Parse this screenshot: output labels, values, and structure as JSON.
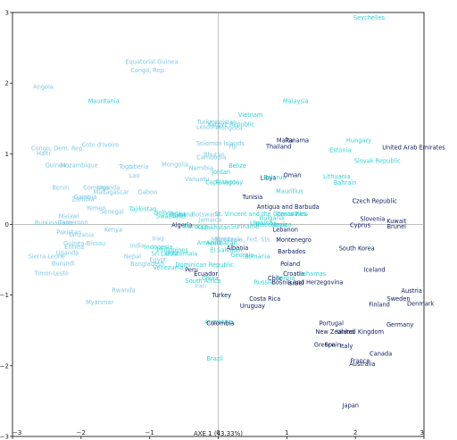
{
  "chart_data": {
    "type": "scatter",
    "xlabel": "AXE 1 (43.33%)",
    "ylabel": "",
    "xlim": [
      -3,
      3
    ],
    "ylim": [
      -3,
      3
    ],
    "xticks": [
      -3,
      -2,
      -1,
      0,
      1,
      2,
      3
    ],
    "yticks": [
      -3,
      -2,
      -1,
      0,
      1,
      2,
      3
    ],
    "colors": {
      "light": "#7ec8e3",
      "medium": "#2ed3d3",
      "dark": "#0b1a5c"
    },
    "points": [
      {
        "label": "Seychelles",
        "x": 2.2,
        "y": 2.93,
        "c": "medium"
      },
      {
        "label": "Equatorial Guinea",
        "x": -0.97,
        "y": 2.3,
        "c": "light"
      },
      {
        "label": "Congo, Rep.",
        "x": -1.02,
        "y": 2.18,
        "c": "light"
      },
      {
        "label": "Angola",
        "x": -2.55,
        "y": 1.95,
        "c": "light"
      },
      {
        "label": "Mauritania",
        "x": -1.67,
        "y": 1.75,
        "c": "medium"
      },
      {
        "label": "Malaysia",
        "x": 1.13,
        "y": 1.75,
        "c": "medium"
      },
      {
        "label": "Vietnam",
        "x": 0.47,
        "y": 1.55,
        "c": "medium"
      },
      {
        "label": "Turkmenistan",
        "x": -0.02,
        "y": 1.45,
        "c": "light"
      },
      {
        "label": "Kyrgyz Republic",
        "x": 0.19,
        "y": 1.42,
        "c": "medium"
      },
      {
        "label": "Lesotho",
        "x": -0.15,
        "y": 1.38,
        "c": "light"
      },
      {
        "label": "Mongolia",
        "x": 0.16,
        "y": 1.37,
        "c": "light"
      },
      {
        "label": "Cote d'Ivoire",
        "x": -1.72,
        "y": 1.13,
        "c": "light"
      },
      {
        "label": "Solomon Islands",
        "x": 0.03,
        "y": 1.15,
        "c": "light"
      },
      {
        "label": "Fiji",
        "x": 0.21,
        "y": 1.1,
        "c": "light"
      },
      {
        "label": "Malta",
        "x": 0.97,
        "y": 1.19,
        "c": "dark"
      },
      {
        "label": "Panama",
        "x": 1.15,
        "y": 1.19,
        "c": "dark"
      },
      {
        "label": "Hungary",
        "x": 2.05,
        "y": 1.19,
        "c": "medium"
      },
      {
        "label": "Thailand",
        "x": 0.88,
        "y": 1.1,
        "c": "dark"
      },
      {
        "label": "Estonia",
        "x": 1.78,
        "y": 1.05,
        "c": "medium"
      },
      {
        "label": "United Arab Emirates",
        "x": 2.85,
        "y": 1.09,
        "c": "dark"
      },
      {
        "label": "Congo, Dem. Rep.",
        "x": -2.34,
        "y": 1.08,
        "c": "light"
      },
      {
        "label": "Haiti",
        "x": -2.55,
        "y": 1.01,
        "c": "light"
      },
      {
        "label": "Bhutan",
        "x": -0.06,
        "y": 0.99,
        "c": "light"
      },
      {
        "label": "Cambodia",
        "x": -0.1,
        "y": 0.95,
        "c": "light"
      },
      {
        "label": "Guinea",
        "x": -2.37,
        "y": 0.84,
        "c": "light"
      },
      {
        "label": "Mozambique",
        "x": -2.03,
        "y": 0.84,
        "c": "light"
      },
      {
        "label": "Togo",
        "x": -1.35,
        "y": 0.82,
        "c": "light"
      },
      {
        "label": "Liberia",
        "x": -1.16,
        "y": 0.82,
        "c": "light"
      },
      {
        "label": "Mongolia",
        "x": -0.63,
        "y": 0.85,
        "c": "light"
      },
      {
        "label": "Namibia",
        "x": -0.25,
        "y": 0.8,
        "c": "light"
      },
      {
        "label": "Belize",
        "x": 0.28,
        "y": 0.83,
        "c": "medium"
      },
      {
        "label": "Slovak Republic",
        "x": 2.32,
        "y": 0.9,
        "c": "medium"
      },
      {
        "label": "Lao",
        "x": -1.22,
        "y": 0.69,
        "c": "light"
      },
      {
        "label": "Jordan",
        "x": 0.04,
        "y": 0.74,
        "c": "medium"
      },
      {
        "label": "Libya",
        "x": 0.73,
        "y": 0.66,
        "c": "dark"
      },
      {
        "label": "Belarus",
        "x": 0.82,
        "y": 0.67,
        "c": "medium"
      },
      {
        "label": "Oman",
        "x": 1.08,
        "y": 0.7,
        "c": "dark"
      },
      {
        "label": "Lithuania",
        "x": 1.73,
        "y": 0.68,
        "c": "medium"
      },
      {
        "label": "Vanuatu",
        "x": -0.31,
        "y": 0.64,
        "c": "light"
      },
      {
        "label": "Cape Verde",
        "x": 0.06,
        "y": 0.6,
        "c": "medium"
      },
      {
        "label": "Paraguay",
        "x": 0.16,
        "y": 0.6,
        "c": "medium"
      },
      {
        "label": "Bahrain",
        "x": 1.85,
        "y": 0.59,
        "c": "medium"
      },
      {
        "label": "Benin",
        "x": -2.3,
        "y": 0.52,
        "c": "light"
      },
      {
        "label": "Comoros",
        "x": -1.78,
        "y": 0.52,
        "c": "light"
      },
      {
        "label": "Uganda",
        "x": -1.6,
        "y": 0.52,
        "c": "light"
      },
      {
        "label": "Madagascar",
        "x": -1.56,
        "y": 0.46,
        "c": "light"
      },
      {
        "label": "Gabon",
        "x": -1.03,
        "y": 0.46,
        "c": "light"
      },
      {
        "label": "Mauritius",
        "x": 1.04,
        "y": 0.47,
        "c": "medium"
      },
      {
        "label": "Gambia",
        "x": -1.94,
        "y": 0.39,
        "c": "light"
      },
      {
        "label": "Zambia",
        "x": -1.97,
        "y": 0.36,
        "c": "light"
      },
      {
        "label": "Tunisia",
        "x": 0.5,
        "y": 0.39,
        "c": "dark"
      },
      {
        "label": "Czech Republic",
        "x": 2.28,
        "y": 0.33,
        "c": "dark"
      },
      {
        "label": "Yemen",
        "x": -1.78,
        "y": 0.23,
        "c": "light"
      },
      {
        "label": "Tajikistan",
        "x": -1.1,
        "y": 0.22,
        "c": "medium"
      },
      {
        "label": "Senegal",
        "x": -1.55,
        "y": 0.18,
        "c": "light"
      },
      {
        "label": "Antigua and Barbuda",
        "x": 1.02,
        "y": 0.25,
        "c": "dark"
      },
      {
        "label": "Bolivia",
        "x": -0.79,
        "y": 0.17,
        "c": "medium"
      },
      {
        "label": "Egypt",
        "x": -0.6,
        "y": 0.14,
        "c": "medium"
      },
      {
        "label": "Ghana",
        "x": -0.5,
        "y": 0.14,
        "c": "medium"
      },
      {
        "label": "Botswana",
        "x": -0.18,
        "y": 0.14,
        "c": "light"
      },
      {
        "label": "St. Vincent and the Grenadines",
        "x": 0.62,
        "y": 0.15,
        "c": "medium"
      },
      {
        "label": "Malawi",
        "x": -2.18,
        "y": 0.12,
        "c": "light"
      },
      {
        "label": "Swaziland",
        "x": -0.69,
        "y": 0.12,
        "c": "medium"
      },
      {
        "label": "Jamaica",
        "x": -0.12,
        "y": 0.07,
        "c": "light"
      },
      {
        "label": "Bulgaria",
        "x": 0.78,
        "y": 0.09,
        "c": "medium"
      },
      {
        "label": "Costa Rica",
        "x": 1.08,
        "y": 0.15,
        "c": "medium"
      },
      {
        "label": "Slovenia",
        "x": 2.25,
        "y": 0.08,
        "c": "dark"
      },
      {
        "label": "Kuwait",
        "x": 2.6,
        "y": 0.05,
        "c": "dark"
      },
      {
        "label": "Burkina Faso",
        "x": -2.4,
        "y": 0.02,
        "c": "light"
      },
      {
        "label": "Cameroon",
        "x": -2.12,
        "y": 0.03,
        "c": "light"
      },
      {
        "label": "Algeria",
        "x": -0.53,
        "y": -0.01,
        "c": "dark"
      },
      {
        "label": "Morocco",
        "x": -0.33,
        "y": -0.03,
        "c": "medium"
      },
      {
        "label": "Kazakhstan",
        "x": -0.07,
        "y": -0.04,
        "c": "medium"
      },
      {
        "label": "Suriname",
        "x": 0.39,
        "y": -0.03,
        "c": "medium"
      },
      {
        "label": "Ukraine",
        "x": 0.63,
        "y": 0.02,
        "c": "medium"
      },
      {
        "label": "Macedonia",
        "x": 0.78,
        "y": 0.0,
        "c": "medium"
      },
      {
        "label": "Mexico",
        "x": 0.92,
        "y": 0.0,
        "c": "medium"
      },
      {
        "label": "Cyprus",
        "x": 2.07,
        "y": -0.01,
        "c": "dark"
      },
      {
        "label": "Brunei",
        "x": 2.6,
        "y": -0.03,
        "c": "dark"
      },
      {
        "label": "Lebanon",
        "x": 0.98,
        "y": -0.07,
        "c": "dark"
      },
      {
        "label": "Kenya",
        "x": -1.53,
        "y": -0.07,
        "c": "light"
      },
      {
        "label": "Pakistan",
        "x": -2.18,
        "y": -0.11,
        "c": "light"
      },
      {
        "label": "Tanzania",
        "x": -2.0,
        "y": -0.15,
        "c": "light"
      },
      {
        "label": "Iraq",
        "x": -0.88,
        "y": -0.2,
        "c": "light"
      },
      {
        "label": "Moldova",
        "x": 0.14,
        "y": -0.21,
        "c": "light"
      },
      {
        "label": "Micronesia, Fed. Sts.",
        "x": 0.34,
        "y": -0.21,
        "c": "light"
      },
      {
        "label": "Montenegro",
        "x": 1.1,
        "y": -0.22,
        "c": "dark"
      },
      {
        "label": "Guinea-Bissau",
        "x": -1.95,
        "y": -0.27,
        "c": "light"
      },
      {
        "label": "Armenia",
        "x": -0.13,
        "y": -0.26,
        "c": "medium"
      },
      {
        "label": "Azerbaijan",
        "x": 0.05,
        "y": -0.26,
        "c": "medium"
      },
      {
        "label": "India",
        "x": -1.18,
        "y": -0.3,
        "c": "light"
      },
      {
        "label": "Indonesia",
        "x": -0.87,
        "y": -0.32,
        "c": "medium"
      },
      {
        "label": "Eritrea",
        "x": -2.1,
        "y": -0.32,
        "c": "light"
      },
      {
        "label": "Albania",
        "x": 0.28,
        "y": -0.33,
        "c": "dark"
      },
      {
        "label": "El Salvador",
        "x": 0.12,
        "y": -0.36,
        "c": "medium"
      },
      {
        "label": "South Korea",
        "x": 2.02,
        "y": -0.34,
        "c": "dark"
      },
      {
        "label": "Philippines",
        "x": -0.67,
        "y": -0.36,
        "c": "medium"
      },
      {
        "label": "Sri Lanka",
        "x": -0.78,
        "y": -0.41,
        "c": "medium"
      },
      {
        "label": "Guatemala",
        "x": -0.54,
        "y": -0.41,
        "c": "medium"
      },
      {
        "label": "Barbados",
        "x": 1.07,
        "y": -0.38,
        "c": "dark"
      },
      {
        "label": "Uganda",
        "x": -2.2,
        "y": -0.4,
        "c": "light"
      },
      {
        "label": "Georgia",
        "x": 0.35,
        "y": -0.43,
        "c": "medium"
      },
      {
        "label": "Romania",
        "x": 0.57,
        "y": -0.45,
        "c": "medium"
      },
      {
        "label": "Sierra Leone",
        "x": -2.5,
        "y": -0.45,
        "c": "light"
      },
      {
        "label": "Nepal",
        "x": -1.25,
        "y": -0.45,
        "c": "light"
      },
      {
        "label": "Egypt",
        "x": -0.88,
        "y": -0.5,
        "c": "light"
      },
      {
        "label": "Burundi",
        "x": -2.26,
        "y": -0.55,
        "c": "light"
      },
      {
        "label": "Bangladesh",
        "x": -1.03,
        "y": -0.56,
        "c": "light"
      },
      {
        "label": "Dominican Republic",
        "x": -0.2,
        "y": -0.57,
        "c": "medium"
      },
      {
        "label": "Poland",
        "x": 1.05,
        "y": -0.56,
        "c": "dark"
      },
      {
        "label": "Venezuela",
        "x": -0.73,
        "y": -0.61,
        "c": "medium"
      },
      {
        "label": "Peru",
        "x": -0.39,
        "y": -0.64,
        "c": "dark"
      },
      {
        "label": "Iceland",
        "x": 2.28,
        "y": -0.64,
        "c": "dark"
      },
      {
        "label": "Timor-Leste",
        "x": -2.43,
        "y": -0.69,
        "c": "light"
      },
      {
        "label": "Ecuador",
        "x": -0.18,
        "y": -0.7,
        "c": "dark"
      },
      {
        "label": "Croatia",
        "x": 1.1,
        "y": -0.7,
        "c": "dark"
      },
      {
        "label": "Bahamas",
        "x": 1.37,
        "y": -0.7,
        "c": "medium"
      },
      {
        "label": "China",
        "x": -0.12,
        "y": -0.76,
        "c": "medium"
      },
      {
        "label": "Chile",
        "x": 0.83,
        "y": -0.76,
        "c": "dark"
      },
      {
        "label": "Serbia",
        "x": 0.98,
        "y": -0.76,
        "c": "medium"
      },
      {
        "label": "South Africa",
        "x": -0.22,
        "y": -0.8,
        "c": "medium"
      },
      {
        "label": "Russia",
        "x": 0.66,
        "y": -0.82,
        "c": "medium"
      },
      {
        "label": "Bosnia and Herzegovina",
        "x": 1.3,
        "y": -0.82,
        "c": "dark"
      },
      {
        "label": "Iran",
        "x": -0.26,
        "y": -0.87,
        "c": "light"
      },
      {
        "label": "Israel",
        "x": 1.13,
        "y": -0.83,
        "c": "dark"
      },
      {
        "label": "Rwanda",
        "x": -1.38,
        "y": -0.93,
        "c": "light"
      },
      {
        "label": "Austria",
        "x": 2.82,
        "y": -0.94,
        "c": "dark"
      },
      {
        "label": "Turkey",
        "x": 0.05,
        "y": -1.0,
        "c": "dark"
      },
      {
        "label": "Costa Rica",
        "x": 0.68,
        "y": -1.05,
        "c": "dark"
      },
      {
        "label": "Sweden",
        "x": 2.63,
        "y": -1.05,
        "c": "dark"
      },
      {
        "label": "Myanmar",
        "x": -1.73,
        "y": -1.1,
        "c": "light"
      },
      {
        "label": "Finland",
        "x": 2.35,
        "y": -1.13,
        "c": "dark"
      },
      {
        "label": "Denmark",
        "x": 2.95,
        "y": -1.12,
        "c": "dark"
      },
      {
        "label": "Uruguay",
        "x": 0.5,
        "y": -1.15,
        "c": "dark"
      },
      {
        "label": "Argentina",
        "x": 0.01,
        "y": -1.38,
        "c": "medium"
      },
      {
        "label": "Colombia",
        "x": 0.03,
        "y": -1.4,
        "c": "dark"
      },
      {
        "label": "Portugal",
        "x": 1.65,
        "y": -1.4,
        "c": "dark"
      },
      {
        "label": "Germany",
        "x": 2.65,
        "y": -1.42,
        "c": "dark"
      },
      {
        "label": "New Zealand",
        "x": 1.7,
        "y": -1.52,
        "c": "dark"
      },
      {
        "label": "United Kingdom",
        "x": 2.07,
        "y": -1.52,
        "c": "dark"
      },
      {
        "label": "Greece",
        "x": 1.55,
        "y": -1.7,
        "c": "dark"
      },
      {
        "label": "Spain",
        "x": 1.67,
        "y": -1.7,
        "c": "dark"
      },
      {
        "label": "Italy",
        "x": 1.87,
        "y": -1.72,
        "c": "dark"
      },
      {
        "label": "Canada",
        "x": 2.37,
        "y": -1.83,
        "c": "dark"
      },
      {
        "label": "Brazil",
        "x": -0.05,
        "y": -1.9,
        "c": "medium"
      },
      {
        "label": "France",
        "x": 2.07,
        "y": -1.93,
        "c": "dark"
      },
      {
        "label": "Australia",
        "x": 2.1,
        "y": -1.97,
        "c": "dark"
      },
      {
        "label": "Japan",
        "x": 1.93,
        "y": -2.56,
        "c": "dark"
      }
    ]
  }
}
